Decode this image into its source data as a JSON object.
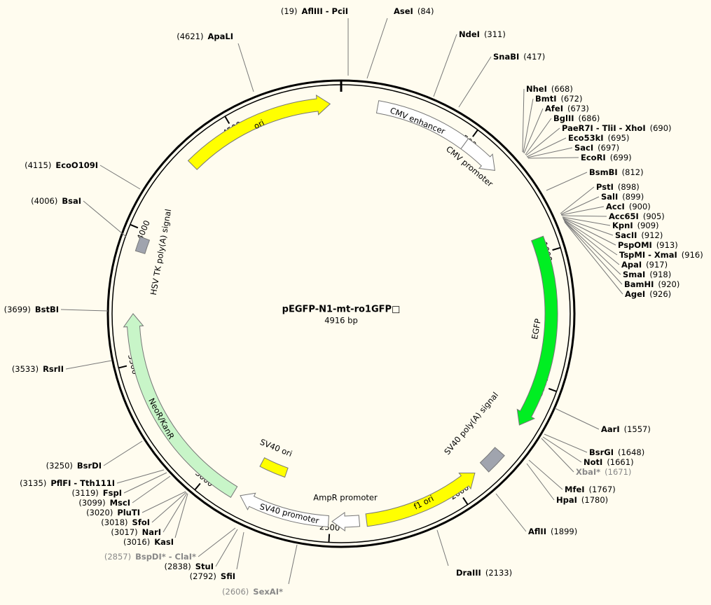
{
  "title": "pEGFP-N1-mt-ro1GFP□",
  "length": "4916 bp",
  "ticks": [
    "500",
    "1000",
    "1500",
    "2000",
    "2500",
    "3000",
    "3500",
    "4000",
    "4500"
  ],
  "features": [
    {
      "label": "ori"
    },
    {
      "label": "CMV enhancer"
    },
    {
      "label": "CMV promoter"
    },
    {
      "label": "EGFP"
    },
    {
      "label": "SV40 poly(A) signal"
    },
    {
      "label": "f1 ori"
    },
    {
      "label": "AmpR promoter"
    },
    {
      "label": "SV40 promoter"
    },
    {
      "label": "SV40 ori"
    },
    {
      "label": "NeoR/KanR"
    },
    {
      "label": "HSV TK poly(A) signal"
    }
  ],
  "sites": [
    {
      "name": "AflIII - PciI",
      "pos": "(19)"
    },
    {
      "name": "AseI",
      "pos": "(84)"
    },
    {
      "name": "NdeI",
      "pos": "(311)"
    },
    {
      "name": "SnaBI",
      "pos": "(417)"
    },
    {
      "name": "NheI",
      "pos": "(668)"
    },
    {
      "name": "BmtI",
      "pos": "(672)"
    },
    {
      "name": "AfeI",
      "pos": "(673)"
    },
    {
      "name": "BglII",
      "pos": "(686)"
    },
    {
      "name": "PaeR7I - TliI - XhoI",
      "pos": "(690)"
    },
    {
      "name": "Eco53kI",
      "pos": "(695)"
    },
    {
      "name": "SacI",
      "pos": "(697)"
    },
    {
      "name": "EcoRI",
      "pos": "(699)"
    },
    {
      "name": "BsmBI",
      "pos": "(812)"
    },
    {
      "name": "PstI",
      "pos": "(898)"
    },
    {
      "name": "SalI",
      "pos": "(899)"
    },
    {
      "name": "AccI",
      "pos": "(900)"
    },
    {
      "name": "Acc65I",
      "pos": "(905)"
    },
    {
      "name": "KpnI",
      "pos": "(909)"
    },
    {
      "name": "SacII",
      "pos": "(912)"
    },
    {
      "name": "PspOMI",
      "pos": "(913)"
    },
    {
      "name": "TspMI - XmaI",
      "pos": "(916)"
    },
    {
      "name": "ApaI",
      "pos": "(917)"
    },
    {
      "name": "SmaI",
      "pos": "(918)"
    },
    {
      "name": "BamHI",
      "pos": "(920)"
    },
    {
      "name": "AgeI",
      "pos": "(926)"
    },
    {
      "name": "AarI",
      "pos": "(1557)"
    },
    {
      "name": "BsrGI",
      "pos": "(1648)"
    },
    {
      "name": "NotI",
      "pos": "(1661)"
    },
    {
      "name": "XbaI*",
      "pos": "(1671)"
    },
    {
      "name": "MfeI",
      "pos": "(1767)"
    },
    {
      "name": "HpaI",
      "pos": "(1780)"
    },
    {
      "name": "AflII",
      "pos": "(1899)"
    },
    {
      "name": "DraIII",
      "pos": "(2133)"
    },
    {
      "name": "SexAI*",
      "pos": "(2606)"
    },
    {
      "name": "SfiI",
      "pos": "(2792)"
    },
    {
      "name": "StuI",
      "pos": "(2838)"
    },
    {
      "name": "BspDI* - ClaI*",
      "pos": "(2857)"
    },
    {
      "name": "KasI",
      "pos": "(3016)"
    },
    {
      "name": "NarI",
      "pos": "(3017)"
    },
    {
      "name": "SfoI",
      "pos": "(3018)"
    },
    {
      "name": "PluTI",
      "pos": "(3020)"
    },
    {
      "name": "MscI",
      "pos": "(3099)"
    },
    {
      "name": "FspI",
      "pos": "(3119)"
    },
    {
      "name": "PflFI - Tth111I",
      "pos": "(3135)"
    },
    {
      "name": "BsrDI",
      "pos": "(3250)"
    },
    {
      "name": "RsrII",
      "pos": "(3533)"
    },
    {
      "name": "BstBI",
      "pos": "(3699)"
    },
    {
      "name": "BsaI",
      "pos": "(4006)"
    },
    {
      "name": "EcoO109I",
      "pos": "(4115)"
    },
    {
      "name": "ApaLI",
      "pos": "(4621)"
    }
  ]
}
